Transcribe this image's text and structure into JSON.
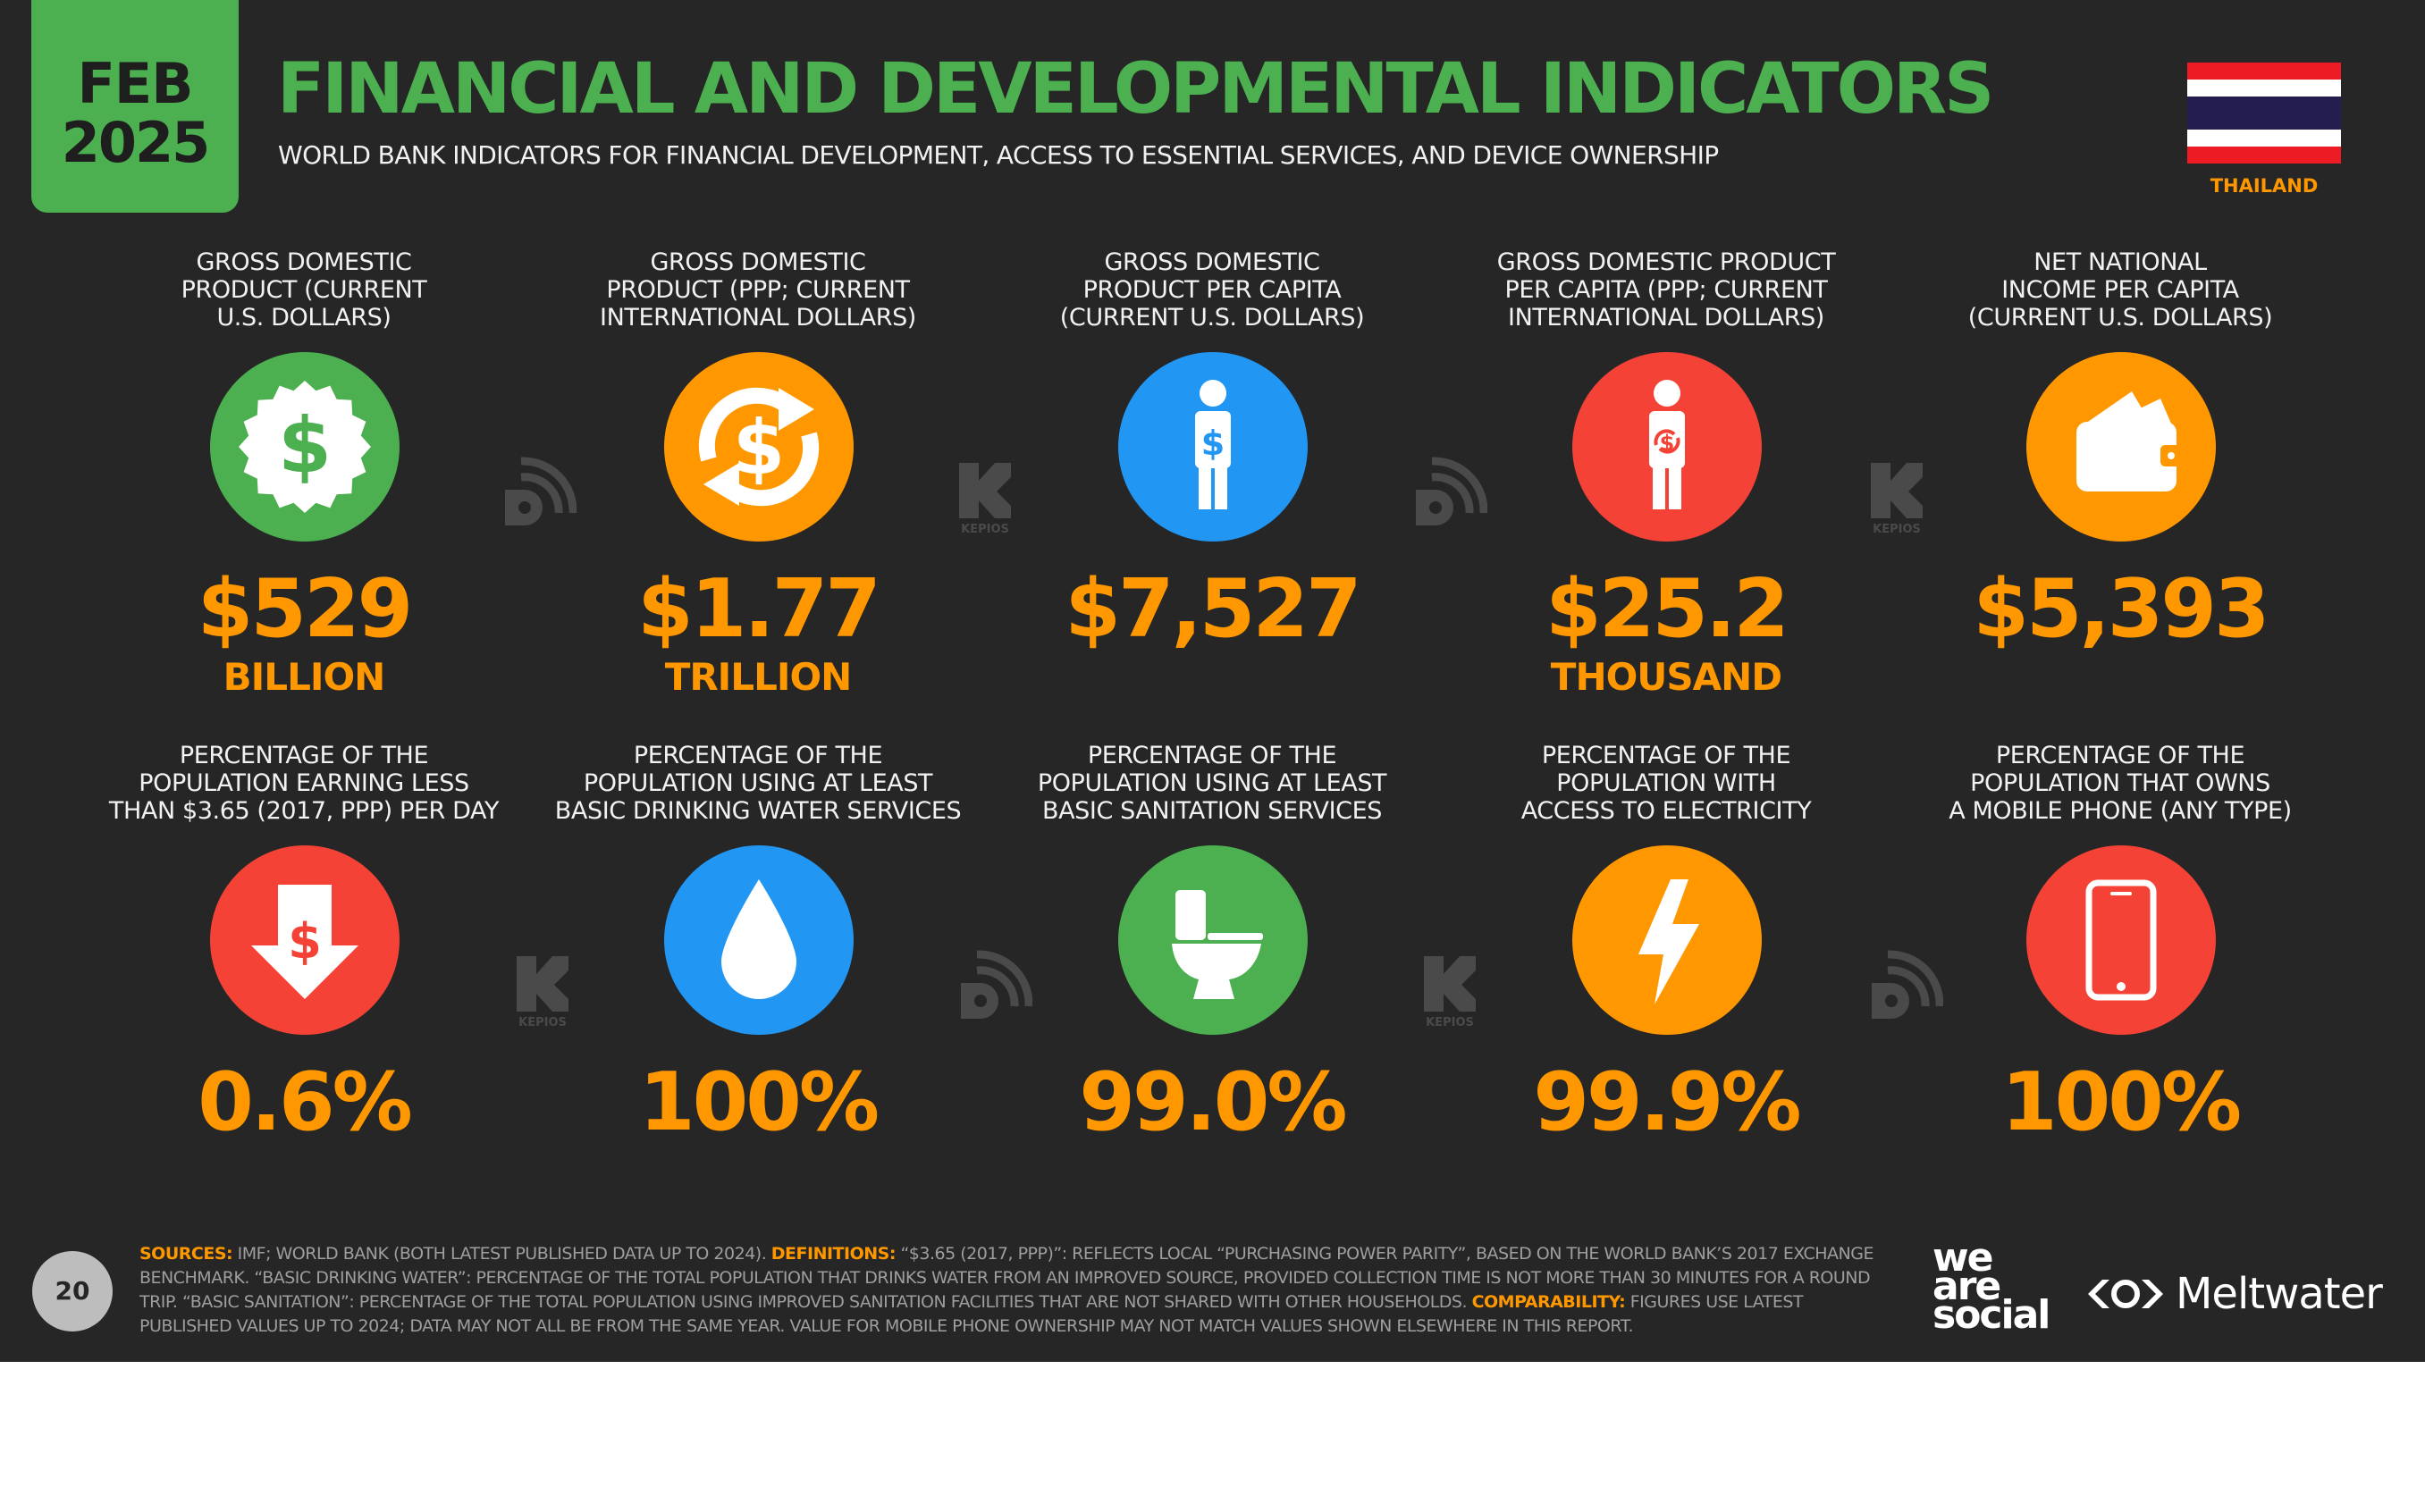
{
  "date": {
    "month": "FEB",
    "year": "2025"
  },
  "title": "FINANCIAL AND DEVELOPMENTAL INDICATORS",
  "subtitle": "WORLD BANK INDICATORS FOR FINANCIAL DEVELOPMENT, ACCESS TO ESSENTIAL SERVICES, AND DEVICE OWNERSHIP",
  "country": "THAILAND",
  "colors": {
    "green": "#4caf50",
    "orange": "#ff9800",
    "blue": "#2196f3",
    "red": "#f44336",
    "background": "#262626"
  },
  "indicators": [
    {
      "label": [
        "GROSS DOMESTIC",
        "PRODUCT (CURRENT",
        "U.S. DOLLARS)"
      ],
      "icon": "dollar-seal-icon",
      "color": "green",
      "value": "$529",
      "unit": "BILLION"
    },
    {
      "label": [
        "GROSS DOMESTIC",
        "PRODUCT (PPP; CURRENT",
        "INTERNATIONAL DOLLARS)"
      ],
      "icon": "dollar-exchange-icon",
      "color": "orange",
      "value": "$1.77",
      "unit": "TRILLION"
    },
    {
      "label": [
        "GROSS DOMESTIC",
        "PRODUCT PER CAPITA",
        "(CURRENT U.S. DOLLARS)"
      ],
      "icon": "person-dollar-icon",
      "color": "blue",
      "value": "$7,527",
      "unit": ""
    },
    {
      "label": [
        "GROSS DOMESTIC PRODUCT",
        "PER CAPITA (PPP; CURRENT",
        "INTERNATIONAL DOLLARS)"
      ],
      "icon": "person-exchange-icon",
      "color": "red",
      "value": "$25.2",
      "unit": "THOUSAND"
    },
    {
      "label": [
        "NET NATIONAL",
        "INCOME PER CAPITA",
        "(CURRENT U.S. DOLLARS)"
      ],
      "icon": "wallet-icon",
      "color": "orange",
      "value": "$5,393",
      "unit": ""
    },
    {
      "label": [
        "PERCENTAGE OF THE",
        "POPULATION EARNING LESS",
        "THAN $3.65 (2017, PPP) PER DAY"
      ],
      "icon": "dollar-down-arrow-icon",
      "color": "red",
      "value": "0.6%",
      "unit": ""
    },
    {
      "label": [
        "PERCENTAGE OF THE",
        "POPULATION USING AT LEAST",
        "BASIC DRINKING WATER SERVICES"
      ],
      "icon": "water-drop-icon",
      "color": "blue",
      "value": "100%",
      "unit": ""
    },
    {
      "label": [
        "PERCENTAGE OF THE",
        "POPULATION USING AT LEAST",
        "BASIC SANITATION SERVICES"
      ],
      "icon": "toilet-icon",
      "color": "green",
      "value": "99.0%",
      "unit": ""
    },
    {
      "label": [
        "PERCENTAGE OF THE",
        "POPULATION WITH",
        "ACCESS TO ELECTRICITY"
      ],
      "icon": "lightning-icon",
      "color": "orange",
      "value": "99.9%",
      "unit": ""
    },
    {
      "label": [
        "PERCENTAGE OF THE",
        "POPULATION THAT OWNS",
        "A MOBILE PHONE (ANY TYPE)"
      ],
      "icon": "mobile-phone-icon",
      "color": "red",
      "value": "100%",
      "unit": ""
    }
  ],
  "watermarks": [
    "datareportal-icon",
    "kepios-icon",
    "datareportal-icon",
    "kepios-icon",
    "kepios-icon",
    "datareportal-icon",
    "kepios-icon",
    "datareportal-icon"
  ],
  "kepios_text": "KEPIOS",
  "page_number": "20",
  "footnote": {
    "sources_key": "SOURCES:",
    "sources_text": "IMF; WORLD BANK (BOTH LATEST PUBLISHED DATA UP TO 2024).",
    "definitions_key": "DEFINITIONS:",
    "definitions_text": "“$3.65 (2017, PPP)”: REFLECTS LOCAL “PURCHASING POWER PARITY”, BASED ON THE WORLD BANK’S 2017 EXCHANGE BENCHMARK. “BASIC DRINKING WATER”: PERCENTAGE OF THE TOTAL POPULATION THAT DRINKS WATER FROM AN IMPROVED SOURCE, PROVIDED COLLECTION TIME IS NOT MORE THAN 30 MINUTES FOR A ROUND TRIP. “BASIC SANITATION”: PERCENTAGE OF THE TOTAL POPULATION USING IMPROVED SANITATION FACILITIES THAT ARE NOT SHARED WITH OTHER HOUSEHOLDS.",
    "comparability_key": "COMPARABILITY:",
    "comparability_text": "FIGURES USE LATEST PUBLISHED VALUES UP TO 2024; DATA MAY NOT ALL BE FROM THE SAME YEAR. VALUE FOR MOBILE PHONE OWNERSHIP MAY NOT MATCH VALUES SHOWN ELSEWHERE IN THIS REPORT."
  },
  "logos": {
    "wearesocial": [
      "we",
      "are",
      "social"
    ],
    "meltwater": "Meltwater"
  }
}
